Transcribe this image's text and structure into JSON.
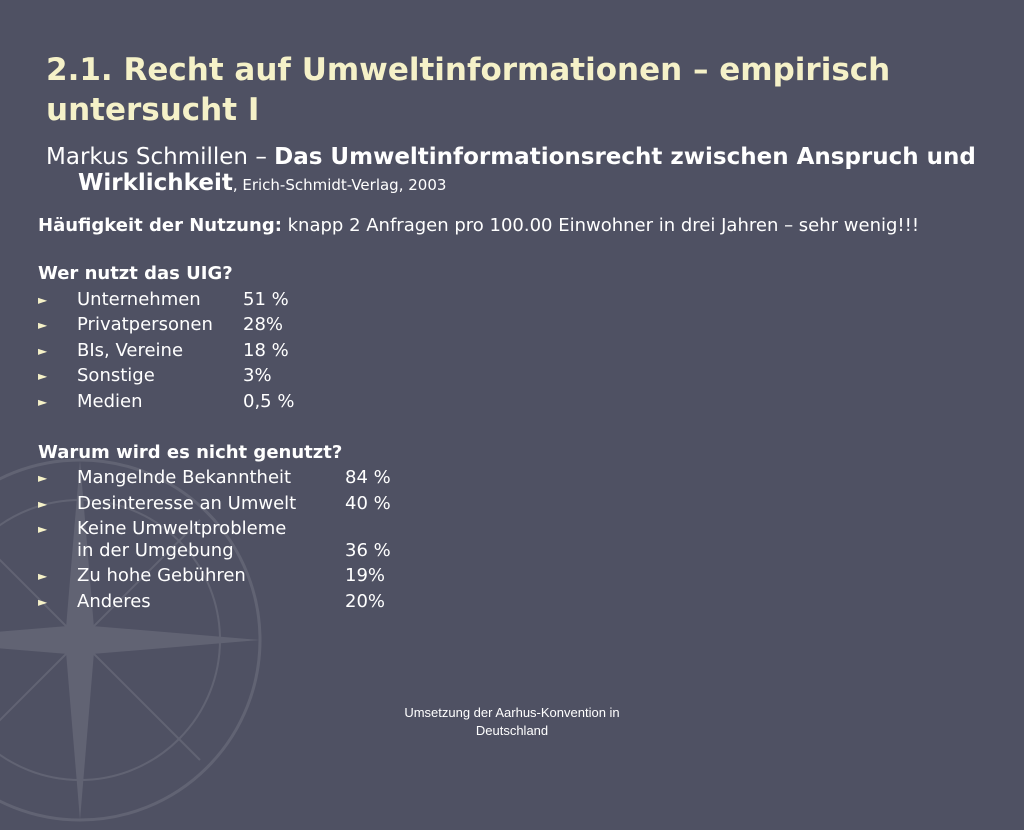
{
  "slide": {
    "title": "2.1. Recht auf Umweltinformationen – empirisch untersucht I",
    "reference": {
      "author": "Markus Schmillen – ",
      "book_line1": "Das Umweltinformationsrecht zwischen Anspruch und",
      "book_line2": "Wirklichkeit",
      "publisher": ", Erich-Schmidt-Verlag, 2003"
    },
    "usage": {
      "label": "Häufigkeit der Nutzung:",
      "text": " knapp 2 Anfragen pro 100.00 Einwohner in drei Jahren – sehr wenig!!!"
    },
    "users": {
      "heading": "Wer nutzt das UIG?",
      "items": [
        {
          "label": "Unternehmen",
          "value": "51 %"
        },
        {
          "label": "Privatpersonen",
          "value": "28%"
        },
        {
          "label": "BIs, Vereine",
          "value": "18 %"
        },
        {
          "label": "Sonstige",
          "value": "3%"
        },
        {
          "label": "Medien",
          "value": "0,5 %"
        }
      ]
    },
    "reasons": {
      "heading": "Warum wird es nicht genutzt?",
      "items": [
        {
          "label": "Mangelnde Bekanntheit",
          "value": "84 %"
        },
        {
          "label": "Desinteresse an Umwelt",
          "value": "40 %"
        },
        {
          "label": "Keine Umweltprobleme",
          "label2": "in der Umgebung",
          "value": "36 %"
        },
        {
          "label": "Zu hohe Gebühren",
          "value": "19%"
        },
        {
          "label": "Anderes",
          "value": "20%"
        }
      ]
    },
    "bullet_glyph": "►",
    "footer": {
      "line1": "Umsetzung der Aarhus-Konvention in",
      "line2": "Deutschland"
    }
  }
}
